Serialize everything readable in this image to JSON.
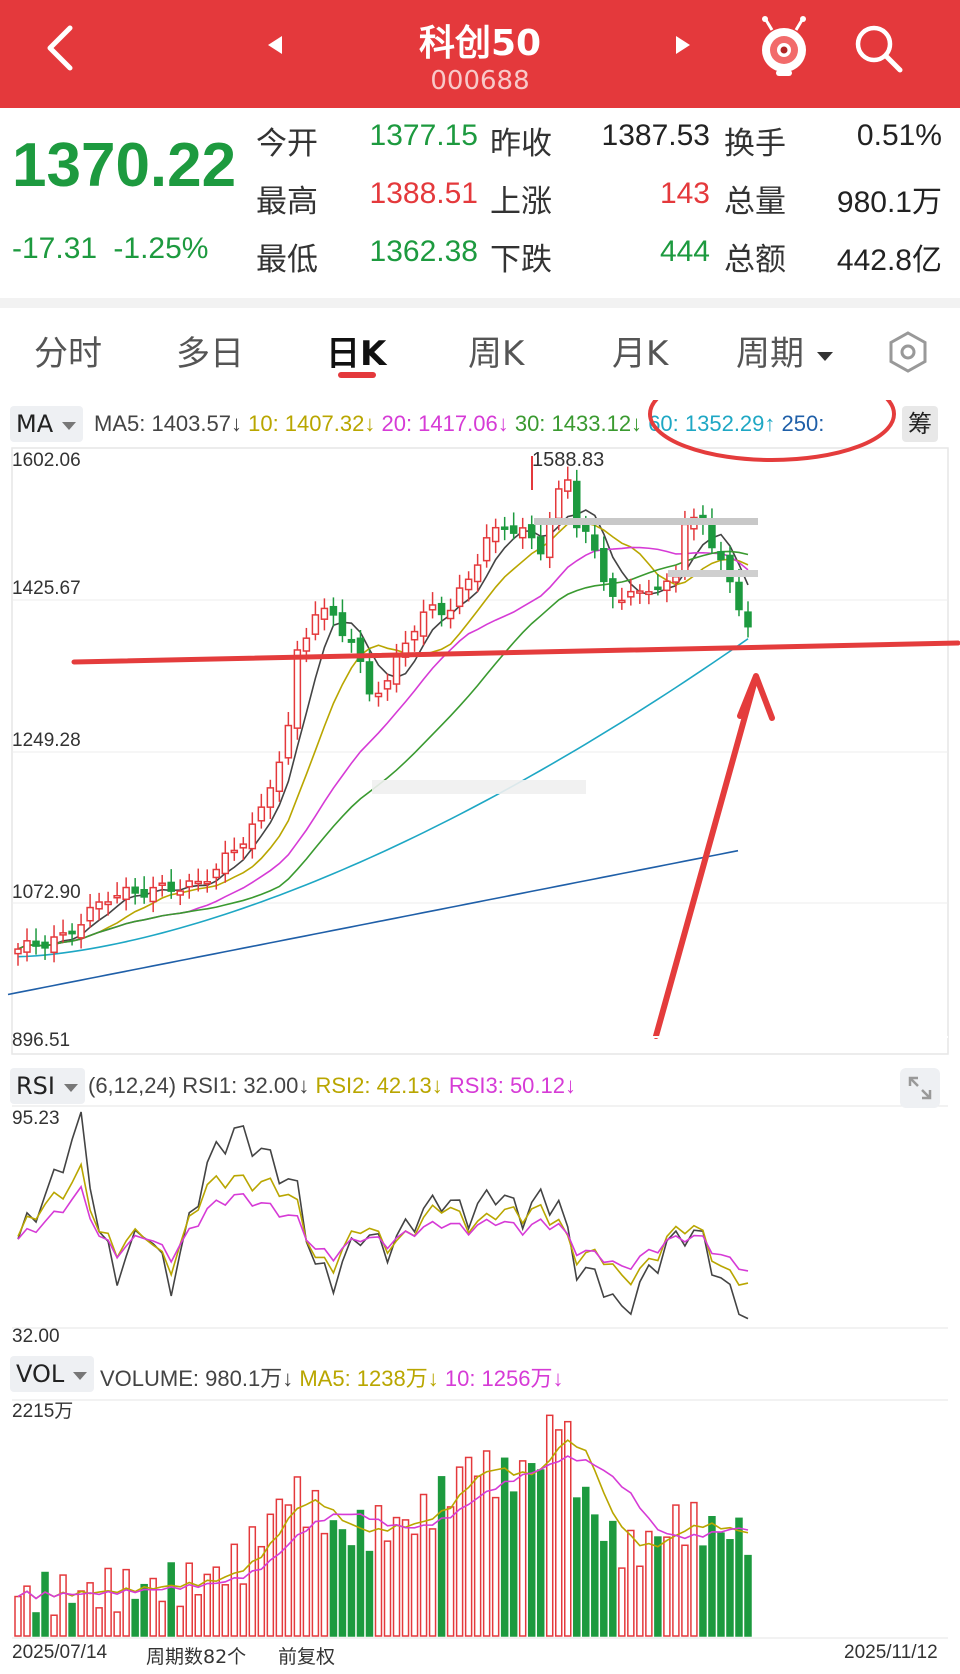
{
  "header": {
    "title": "科创50",
    "code": "000688",
    "back_icon": "chevron-left-icon",
    "prev_icon": "triangle-left-icon",
    "next_icon": "triangle-right-icon",
    "mascot_icon": "mascot-icon",
    "search_icon": "search-icon",
    "bg_color": "#e4393c"
  },
  "quote": {
    "price": "1370.22",
    "change": "-17.31",
    "change_pct": "-1.25%",
    "stats": [
      {
        "label": "今开",
        "value": "1377.15"
      },
      {
        "label": "昨收",
        "value": "1387.53"
      },
      {
        "label": "换手",
        "value": "0.51%"
      },
      {
        "label": "最高",
        "value": "1388.51"
      },
      {
        "label": "上涨",
        "value": "143"
      },
      {
        "label": "总量",
        "value": "980.1万"
      },
      {
        "label": "最低",
        "value": "1362.38"
      },
      {
        "label": "下跌",
        "value": "444"
      },
      {
        "label": "总额",
        "value": "442.8亿"
      }
    ]
  },
  "tabs": {
    "items": [
      "分时",
      "多日",
      "日K",
      "周K",
      "月K",
      "周期"
    ],
    "active": "日K",
    "settings_icon": "hexagon-settings-icon"
  },
  "ma_panel": {
    "chip": "MA",
    "ma5": "MA5: 1403.57↓",
    "ma10": "10: 1407.32↓",
    "ma20": "20: 1417.06↓",
    "ma30": "30: 1433.12↓",
    "ma60": "60: 1352.29↑",
    "ma250": "250:",
    "chip_right": "筹",
    "y_labels": [
      "1602.06",
      "1425.67",
      "1249.28",
      "1072.90",
      "896.51"
    ],
    "peak_label": "1588.83"
  },
  "rsi_panel": {
    "chip": "RSI",
    "params": "(6,12,24)",
    "rsi1": "RSI1: 32.00↓",
    "rsi2": "RSI2: 42.13↓",
    "rsi3": "RSI3: 50.12↓",
    "y_max": "95.23",
    "y_min": "32.00",
    "expand_icon": "expand-icon"
  },
  "vol_panel": {
    "chip": "VOL",
    "volume": "VOLUME: 980.1万↓",
    "ma5": "MA5: 1238万↓",
    "ma10": "10: 1256万↓",
    "y_max": "2215万"
  },
  "footer": {
    "start_date": "2025/07/14",
    "periods": "周期数82个",
    "adjust": "前复权",
    "end_date": "2025/11/12"
  },
  "colors": {
    "up": "#e4393c",
    "down": "#1d9a3f",
    "ma5": "#444444",
    "ma10": "#b9a600",
    "ma20": "#d63bd6",
    "ma30": "#3a9a30",
    "ma60": "#1ea7c4",
    "ma250": "#1f5fa8",
    "annotation": "#e43c3c"
  },
  "chart_data": {
    "type": "candlestick",
    "x_range": [
      "2025/07/14",
      "2025/11/12"
    ],
    "periods": 82,
    "ylim": [
      896.51,
      1602.06
    ],
    "peak": 1588.83,
    "close_last": 1370.22,
    "ma_last": {
      "ma5": 1403.57,
      "ma10": 1407.32,
      "ma20": 1417.06,
      "ma30": 1433.12,
      "ma60": 1352.29
    },
    "rsi_last": {
      "rsi1": 32.0,
      "rsi2": 42.13,
      "rsi3": 50.12
    },
    "rsi_ylim": [
      32.0,
      95.23
    ],
    "volume_last_wan": 980.1,
    "volume_ma_last_wan": {
      "ma5": 1238,
      "ma10": 1256
    },
    "volume_max_wan": 2215
  }
}
